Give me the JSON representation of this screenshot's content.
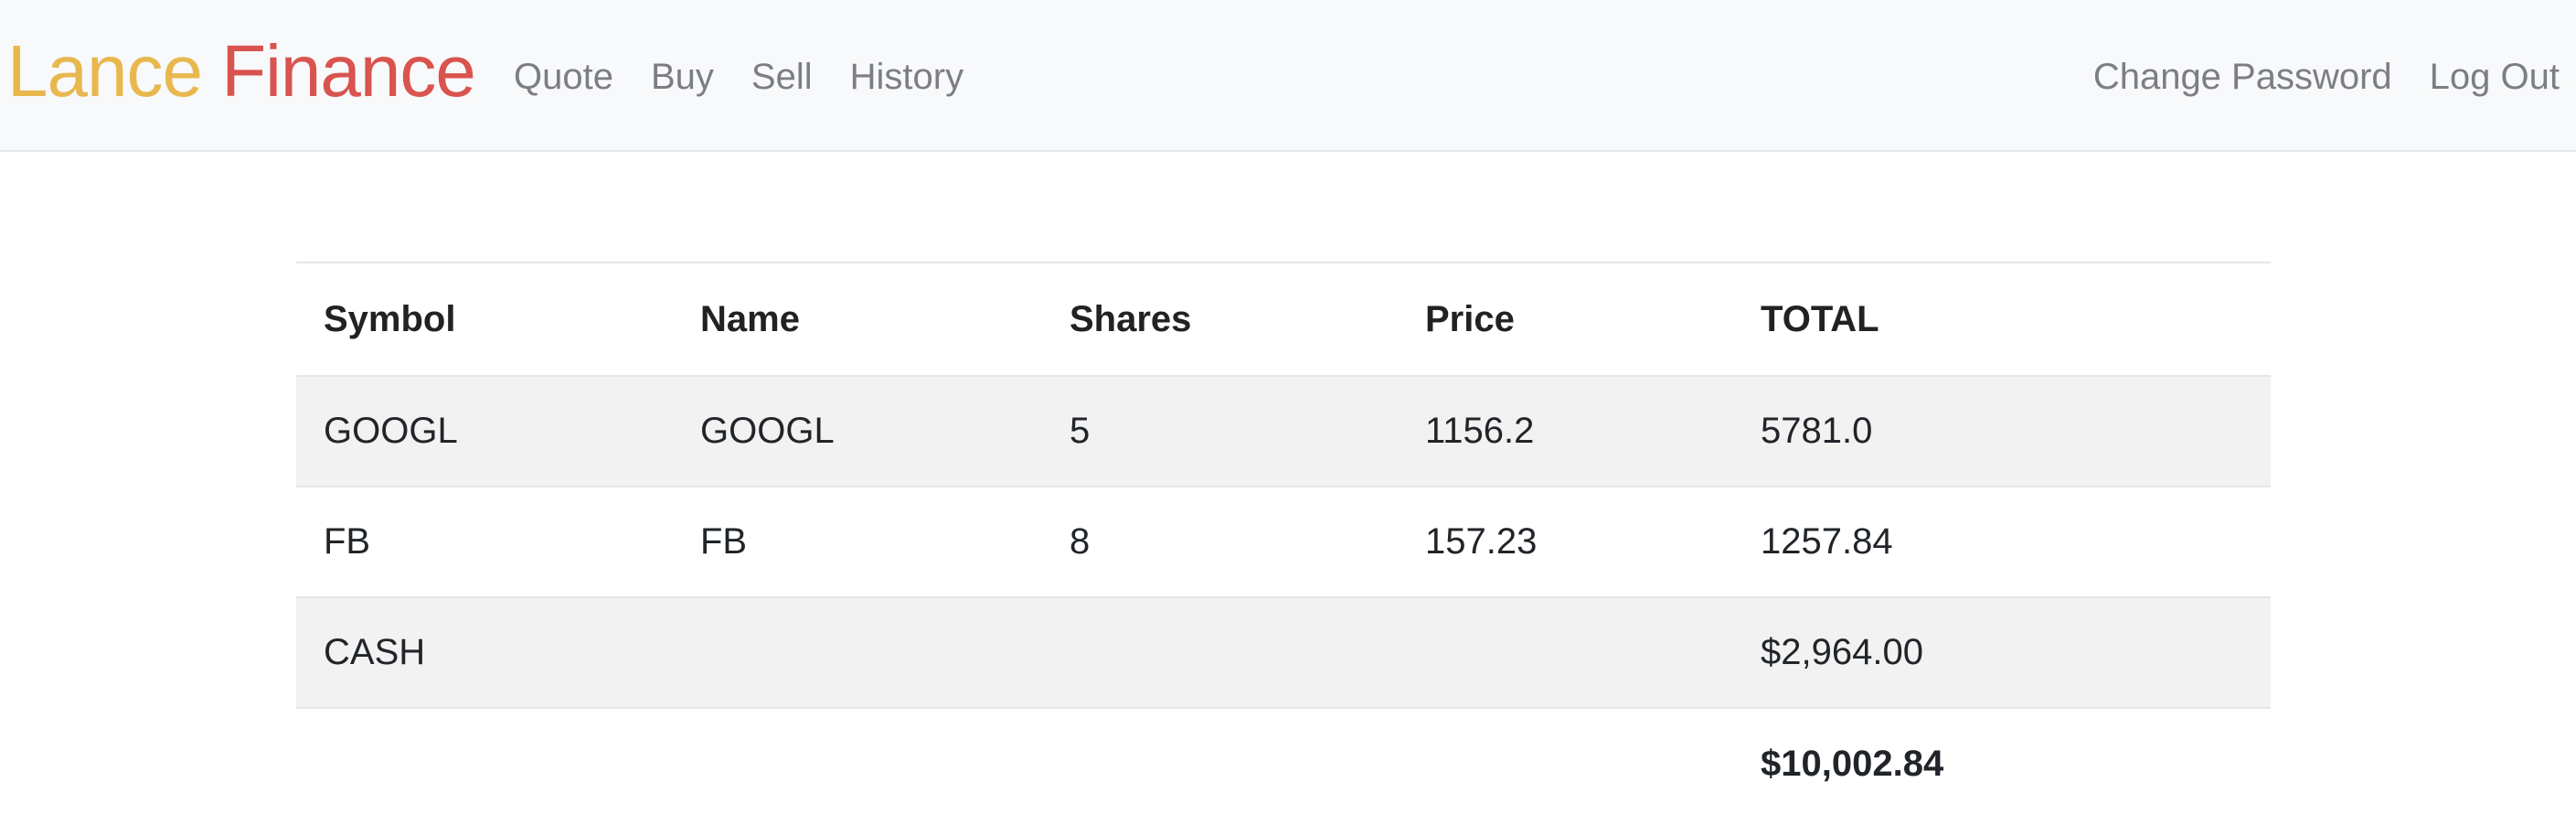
{
  "header": {
    "brand": {
      "first": "Lance",
      "second": "Finance"
    },
    "left_links": [
      "Quote",
      "Buy",
      "Sell",
      "History"
    ],
    "right_links": [
      "Change Password",
      "Log Out"
    ]
  },
  "portfolio": {
    "headers": [
      "Symbol",
      "Name",
      "Shares",
      "Price",
      "TOTAL"
    ],
    "rows": [
      [
        "GOOGL",
        "GOOGL",
        "5",
        "1156.2",
        "5781.0"
      ],
      [
        "FB",
        "FB",
        "8",
        "157.23",
        "1257.84"
      ],
      [
        "CASH",
        "",
        "",
        "",
        "$2,964.00"
      ]
    ],
    "grand_total": "$10,002.84"
  },
  "colors": {
    "brand_first": "#e8b84f",
    "brand_second": "#d9534f",
    "nav_link": "#7c7e81",
    "striped_row": "#f2f2f2"
  }
}
